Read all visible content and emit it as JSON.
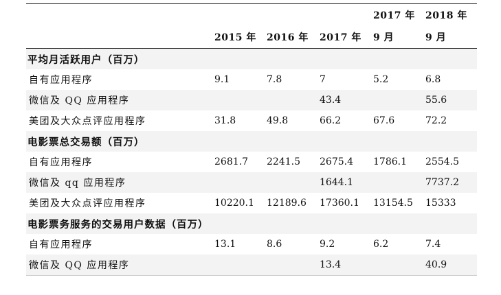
{
  "table": {
    "headers": [
      {
        "line1": "",
        "line2": "2015 年"
      },
      {
        "line1": "",
        "line2": "2016 年"
      },
      {
        "line1": "",
        "line2": "2017 年"
      },
      {
        "line1": "2017 年",
        "line2": "9 月"
      },
      {
        "line1": "2018 年",
        "line2": "9 月"
      }
    ],
    "sections": [
      {
        "title": "平均月活跃用户（百万）",
        "rows": [
          {
            "label": "自有应用程序",
            "values": [
              "9.1",
              "7.8",
              "7",
              "5.2",
              "6.8"
            ]
          },
          {
            "label": "微信及 QQ 应用程序",
            "values": [
              "",
              "",
              "43.4",
              "",
              "55.6"
            ]
          },
          {
            "label": "美团及大众点评应用程序",
            "values": [
              "31.8",
              "49.8",
              "66.2",
              "67.6",
              "72.2"
            ]
          }
        ]
      },
      {
        "title": "电影票总交易额（百万）",
        "rows": [
          {
            "label": "自有应用程序",
            "values": [
              "2681.7",
              "2241.5",
              "2675.4",
              "1786.1",
              "2554.5"
            ]
          },
          {
            "label": "微信及 qq 应用程序",
            "values": [
              "",
              "",
              "1644.1",
              "",
              "7737.2"
            ]
          },
          {
            "label": "美团及大众点评应用程序",
            "values": [
              "10220.1",
              "12189.6",
              "17360.1",
              "13154.5",
              "15333"
            ]
          }
        ]
      },
      {
        "title": "电影票务服务的交易用户数据（百万）",
        "rows": [
          {
            "label": "自有应用程序",
            "values": [
              "13.1",
              "8.6",
              "9.2",
              "6.2",
              "7.4"
            ]
          },
          {
            "label": "微信及 QQ 应用程序",
            "values": [
              "",
              "",
              "13.4",
              "",
              "40.9"
            ]
          }
        ]
      }
    ]
  }
}
